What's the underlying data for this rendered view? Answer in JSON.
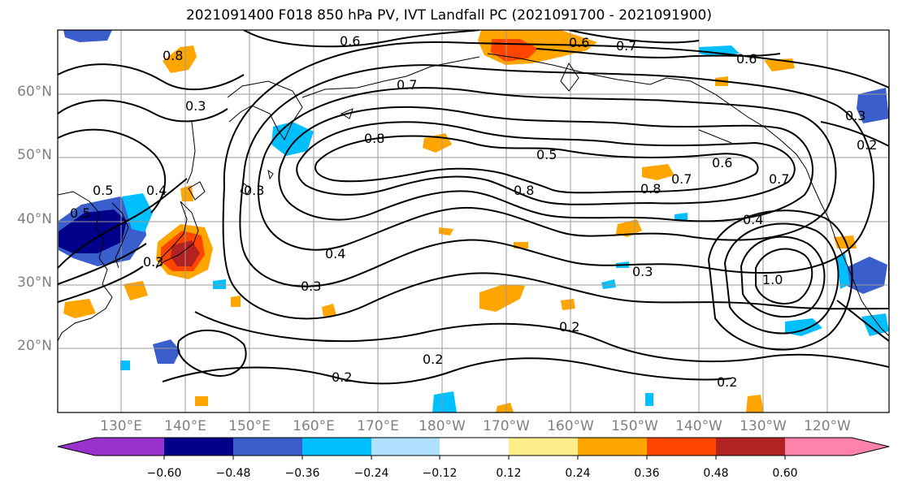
{
  "title": "2021091400 F018 850 hPa PV, IVT Landfall PC (2021091700 - 2021091900)",
  "lat_labels": [
    "60°N",
    "50°N",
    "40°N",
    "30°N",
    "20°N"
  ],
  "lon_labels": [
    "130°E",
    "140°E",
    "150°E",
    "160°E",
    "170°E",
    "180°W",
    "170°W",
    "160°W",
    "150°W",
    "140°W",
    "130°W",
    "120°W"
  ],
  "colorbar": {
    "ticks": [
      "−0.60",
      "−0.48",
      "−0.36",
      "−0.24",
      "−0.12",
      "0.12",
      "0.24",
      "0.36",
      "0.48",
      "0.60"
    ],
    "colors": [
      "#9932cc",
      "#00008b",
      "#3a5fcd",
      "#00bfff",
      "#b0e2ff",
      "#ffffff",
      "#ffec8b",
      "#ffa500",
      "#ff4500",
      "#b22222",
      "#ff82ab"
    ]
  },
  "contour_labels": [
    "0.6",
    "0.6",
    "0.7",
    "0.3",
    "0.3",
    "0.3",
    "0.2",
    "0.4",
    "0.5",
    "0.6",
    "0.7",
    "0.8",
    "0.8",
    "0.6",
    "0.5",
    "0.4",
    "0.3",
    "0.7",
    "1.0",
    "0.8",
    "0.7",
    "0.4",
    "0.3",
    "0.2",
    "0.2",
    "0.2",
    "0.2",
    "0.5",
    "0.3",
    "0.8"
  ],
  "fill_colors": {
    "orange": "#ffa500",
    "red": "#ff4500",
    "darkred": "#b22222",
    "yellow": "#ffec8b",
    "lightblue": "#b0e2ff",
    "cyan": "#00bfff",
    "blue": "#3a5fcd",
    "navy": "#00008b"
  }
}
